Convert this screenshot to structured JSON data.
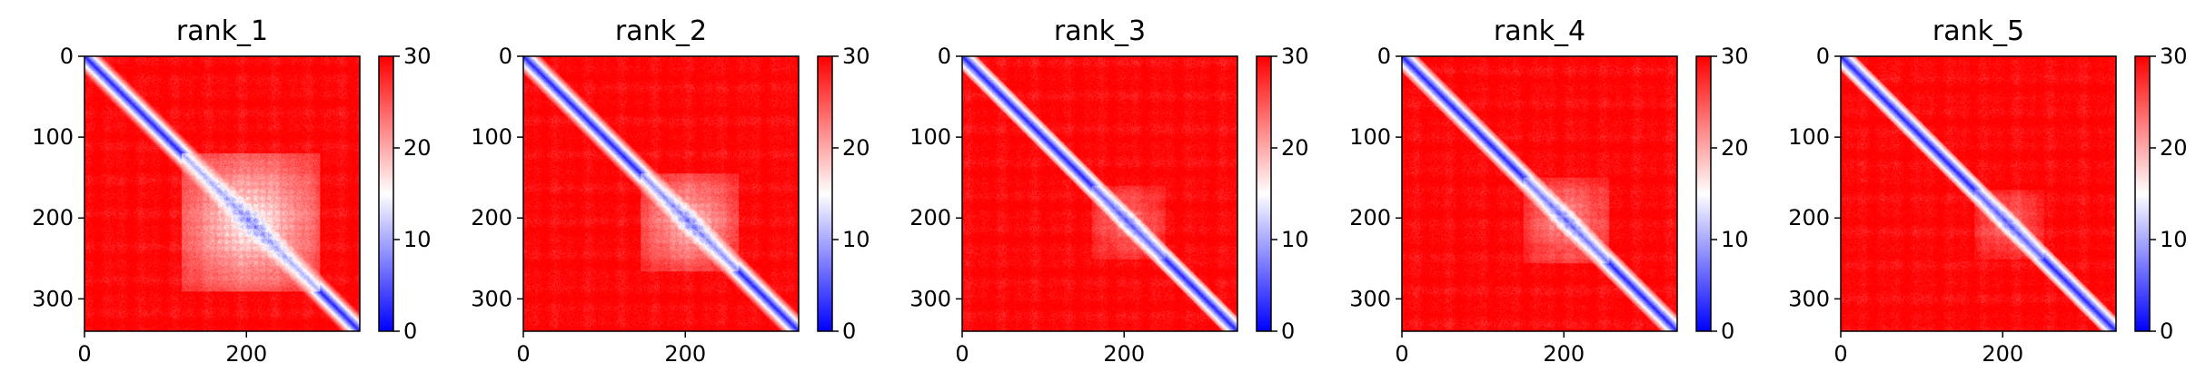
{
  "chart_data": {
    "type": "heatmap",
    "colormap": {
      "name": "bwr",
      "low": "#0000ff",
      "mid": "#ffffff",
      "high": "#ff0000"
    },
    "size": 340,
    "vmin": 0,
    "vmax": 30,
    "x_ticks": [
      0,
      200
    ],
    "y_ticks": [
      0,
      100,
      200,
      300
    ],
    "colorbar_ticks": [
      0,
      10,
      20,
      30
    ],
    "panels": [
      {
        "title": "rank_1",
        "block": [
          120,
          290
        ],
        "block_strength": 0.78,
        "diag_width": 4.0
      },
      {
        "title": "rank_2",
        "block": [
          145,
          265
        ],
        "block_strength": 0.62,
        "diag_width": 3.6
      },
      {
        "title": "rank_3",
        "block": [
          160,
          250
        ],
        "block_strength": 0.38,
        "diag_width": 3.0
      },
      {
        "title": "rank_4",
        "block": [
          150,
          255
        ],
        "block_strength": 0.48,
        "diag_width": 3.2
      },
      {
        "title": "rank_5",
        "block": [
          165,
          250
        ],
        "block_strength": 0.35,
        "diag_width": 3.0
      }
    ]
  }
}
